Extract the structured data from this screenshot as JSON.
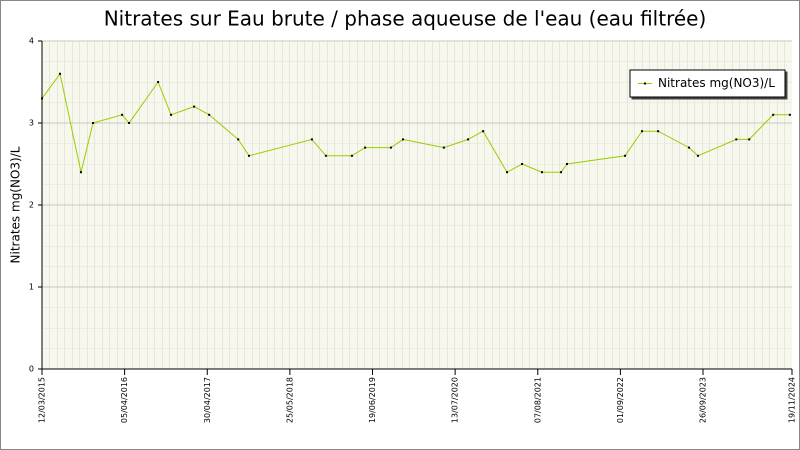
{
  "chart_data": {
    "type": "line",
    "title": "Nitrates sur Eau brute / phase aqueuse de l'eau (eau filtrée)",
    "y_label": "Nitrates mg(NO3)/L",
    "x": [
      "12/03/2015",
      "05/06/2015",
      "12/09/2015",
      "08/11/2015",
      "24/03/2016",
      "26/04/2016",
      "10/09/2016",
      "10/11/2016",
      "27/02/2017",
      "09/05/2017",
      "23/09/2017",
      "13/11/2017",
      "06/09/2018",
      "11/11/2018",
      "14/03/2019",
      "15/05/2019",
      "14/09/2019",
      "10/11/2019",
      "21/05/2020",
      "12/09/2020",
      "22/11/2020",
      "15/03/2021",
      "25/05/2021",
      "27/08/2021",
      "25/11/2021",
      "23/12/2021",
      "23/09/2022",
      "12/12/2022",
      "26/02/2023",
      "22/07/2023",
      "02/09/2023",
      "01/03/2024",
      "01/05/2024",
      "22/08/2024",
      "09/11/2024"
    ],
    "series": [
      {
        "name": "Nitrates mg(NO3)/L",
        "color": "#99cc00",
        "values": [
          3.3,
          3.6,
          2.4,
          3.0,
          3.1,
          3.0,
          3.5,
          3.1,
          3.2,
          3.1,
          2.8,
          2.6,
          2.8,
          2.6,
          2.6,
          2.7,
          2.7,
          2.8,
          2.7,
          2.8,
          2.9,
          2.4,
          2.5,
          2.4,
          2.4,
          2.5,
          2.6,
          2.9,
          2.9,
          2.7,
          2.6,
          2.8,
          2.8,
          3.1,
          3.1
        ]
      }
    ],
    "xlim": [
      "12/03/2015",
      "19/11/2024"
    ],
    "xticks": [
      "12/03/2015",
      "05/04/2016",
      "30/04/2017",
      "25/05/2018",
      "19/06/2019",
      "13/07/2020",
      "07/08/2021",
      "01/09/2022",
      "26/09/2023",
      "19/11/2024"
    ],
    "ylim": [
      0,
      4
    ],
    "yticks": [
      0,
      1,
      2,
      3,
      4
    ],
    "grid": true,
    "legend": "top-right"
  }
}
